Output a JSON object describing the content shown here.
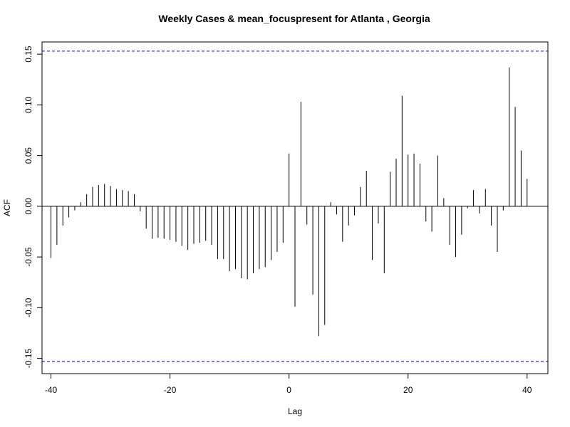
{
  "chart_data": {
    "type": "bar",
    "title": "Weekly Cases & mean_focuspresent for Atlanta , Georgia",
    "xlabel": "Lag",
    "ylabel": "ACF",
    "xlim": [
      -41.5,
      43.5
    ],
    "ylim": [
      -0.165,
      0.162
    ],
    "x_ticks": [
      -40,
      -20,
      0,
      20,
      40
    ],
    "y_ticks": [
      -0.15,
      -0.1,
      -0.05,
      0.0,
      0.05,
      0.1,
      0.15
    ],
    "x_tick_labels": [
      "-40",
      "-20",
      "0",
      "20",
      "40"
    ],
    "y_tick_labels": [
      "-0.15",
      "-0.10",
      "-0.05",
      "0.00",
      "0.05",
      "0.10",
      "0.15"
    ],
    "confidence_bound": 0.153,
    "colors": {
      "bars": "#000000",
      "bounds": "#0000cc",
      "zero_line": "#000000"
    },
    "lags": [
      -40,
      -39,
      -38,
      -37,
      -36,
      -35,
      -34,
      -33,
      -32,
      -31,
      -30,
      -29,
      -28,
      -27,
      -26,
      -25,
      -24,
      -23,
      -22,
      -21,
      -20,
      -19,
      -18,
      -17,
      -16,
      -15,
      -14,
      -13,
      -12,
      -11,
      -10,
      -9,
      -8,
      -7,
      -6,
      -5,
      -4,
      -3,
      -2,
      -1,
      0,
      1,
      2,
      3,
      4,
      5,
      6,
      7,
      8,
      9,
      10,
      11,
      12,
      13,
      14,
      15,
      16,
      17,
      18,
      19,
      20,
      21,
      22,
      23,
      24,
      25,
      26,
      27,
      28,
      29,
      30,
      31,
      32,
      33,
      34,
      35,
      36,
      37,
      38,
      39,
      40
    ],
    "values": [
      -0.051,
      -0.038,
      -0.019,
      -0.011,
      -0.004,
      0.004,
      0.012,
      0.019,
      0.021,
      0.022,
      0.02,
      0.017,
      0.016,
      0.015,
      0.012,
      -0.005,
      -0.022,
      -0.032,
      -0.031,
      -0.032,
      -0.033,
      -0.035,
      -0.039,
      -0.043,
      -0.037,
      -0.036,
      -0.034,
      -0.038,
      -0.052,
      -0.052,
      -0.064,
      -0.062,
      -0.071,
      -0.072,
      -0.066,
      -0.062,
      -0.06,
      -0.053,
      -0.045,
      -0.036,
      0.052,
      -0.099,
      0.103,
      -0.018,
      -0.087,
      -0.128,
      -0.117,
      0.004,
      -0.008,
      -0.035,
      -0.019,
      -0.009,
      0.019,
      0.035,
      -0.053,
      -0.017,
      -0.066,
      0.034,
      0.047,
      0.109,
      0.051,
      0.052,
      0.042,
      -0.015,
      -0.025,
      0.05,
      0.008,
      -0.038,
      -0.05,
      -0.028,
      -0.002,
      0.016,
      -0.007,
      0.017,
      -0.019,
      -0.045,
      -0.004,
      0.137,
      0.098,
      0.055,
      0.027
    ]
  }
}
